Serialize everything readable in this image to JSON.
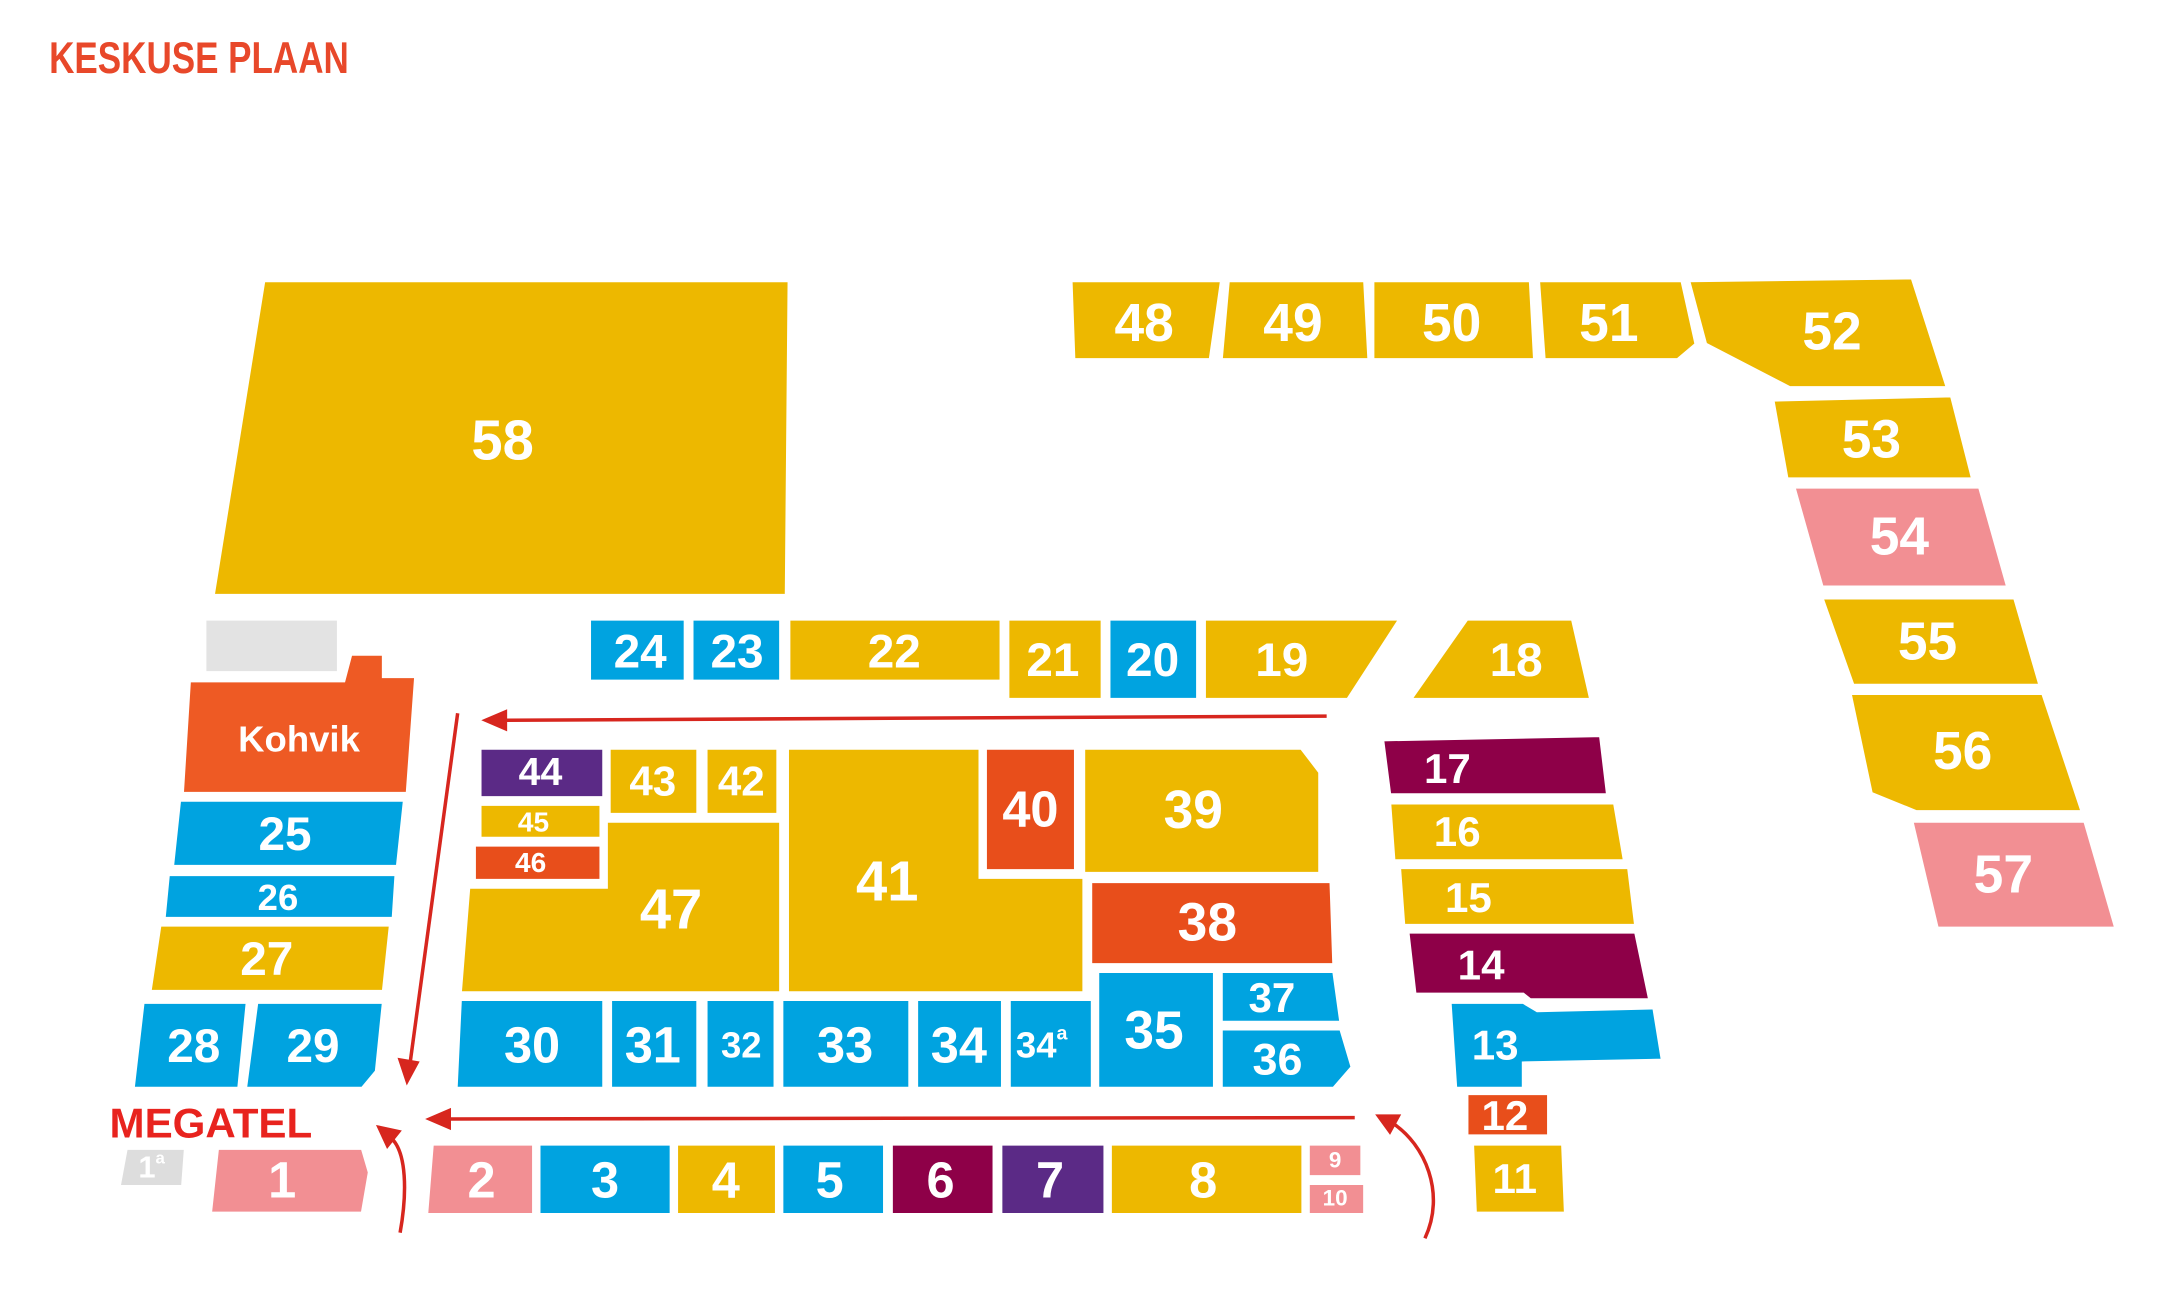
{
  "header": {
    "title": "KESKUSE PLAAN"
  },
  "marker": {
    "label": "MEGATEL"
  },
  "units": [
    {
      "label": "58",
      "color": "#EDB800"
    },
    {
      "label": "48",
      "color": "#EDB800"
    },
    {
      "label": "49",
      "color": "#EDB800"
    },
    {
      "label": "50",
      "color": "#EDB800"
    },
    {
      "label": "51",
      "color": "#EDB800"
    },
    {
      "label": "52",
      "color": "#EDB800"
    },
    {
      "label": "53",
      "color": "#EDB800"
    },
    {
      "label": "54",
      "color": "#F28F93"
    },
    {
      "label": "55",
      "color": "#EDB800"
    },
    {
      "label": "56",
      "color": "#EDB800"
    },
    {
      "label": "57",
      "color": "#F28F93"
    },
    {
      "label": "24",
      "color": "#00A3E0"
    },
    {
      "label": "23",
      "color": "#00A3E0"
    },
    {
      "label": "22",
      "color": "#EDB800"
    },
    {
      "label": "21",
      "color": "#EDB800"
    },
    {
      "label": "20",
      "color": "#00A3E0"
    },
    {
      "label": "19",
      "color": "#EDB800"
    },
    {
      "label": "18",
      "color": "#EDB800"
    },
    {
      "label": "Kohvik",
      "color": "#EE5A24"
    },
    {
      "label": "25",
      "color": "#00A3E0"
    },
    {
      "label": "26",
      "color": "#00A3E0"
    },
    {
      "label": "27",
      "color": "#EDB800"
    },
    {
      "label": "28",
      "color": "#00A3E0"
    },
    {
      "label": "29",
      "color": "#00A3E0"
    },
    {
      "label": "44",
      "color": "#5B2A86"
    },
    {
      "label": "45",
      "color": "#EDB800"
    },
    {
      "label": "46",
      "color": "#E84E1B"
    },
    {
      "label": "43",
      "color": "#EDB800"
    },
    {
      "label": "42",
      "color": "#EDB800"
    },
    {
      "label": "47",
      "color": "#EDB800"
    },
    {
      "label": "41",
      "color": "#EDB800"
    },
    {
      "label": "40",
      "color": "#E84E1B"
    },
    {
      "label": "39",
      "color": "#EDB800"
    },
    {
      "label": "38",
      "color": "#E84E1B"
    },
    {
      "label": "30",
      "color": "#00A3E0"
    },
    {
      "label": "31",
      "color": "#00A3E0"
    },
    {
      "label": "32",
      "color": "#00A3E0"
    },
    {
      "label": "33",
      "color": "#00A3E0"
    },
    {
      "label": "34",
      "color": "#00A3E0"
    },
    {
      "label": "34",
      "sup": "a",
      "color": "#00A3E0"
    },
    {
      "label": "35",
      "color": "#00A3E0"
    },
    {
      "label": "37",
      "color": "#00A3E0"
    },
    {
      "label": "36",
      "color": "#00A3E0"
    },
    {
      "label": "17",
      "color": "#8E0048"
    },
    {
      "label": "16",
      "color": "#EDB800"
    },
    {
      "label": "15",
      "color": "#EDB800"
    },
    {
      "label": "14",
      "color": "#8E0048"
    },
    {
      "label": "13",
      "color": "#00A3E0"
    },
    {
      "label": "12",
      "color": "#E84E1B"
    },
    {
      "label": "11",
      "color": "#EDB800"
    },
    {
      "label": "1",
      "sup": "a",
      "color": "#DDDDDD"
    },
    {
      "label": "1",
      "color": "#F28F93"
    },
    {
      "label": "2",
      "color": "#F28F93"
    },
    {
      "label": "3",
      "color": "#00A3E0"
    },
    {
      "label": "4",
      "color": "#EDB800"
    },
    {
      "label": "5",
      "color": "#00A3E0"
    },
    {
      "label": "6",
      "color": "#8E0048"
    },
    {
      "label": "7",
      "color": "#5B2A86"
    },
    {
      "label": "8",
      "color": "#EDB800"
    },
    {
      "label": "9",
      "color": "#F28F93"
    },
    {
      "label": "10",
      "color": "#F28F93"
    }
  ]
}
